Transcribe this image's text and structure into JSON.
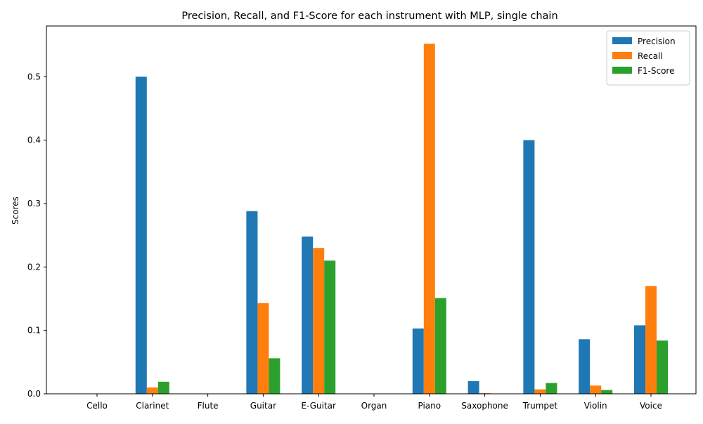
{
  "chart_data": {
    "type": "bar",
    "title": "Precision, Recall, and F1-Score for each instrument with MLP, single chain",
    "xlabel": "",
    "ylabel": "Scores",
    "ylim": [
      0,
      0.58
    ],
    "yticks": [
      "0.0",
      "0.1",
      "0.2",
      "0.3",
      "0.4",
      "0.5"
    ],
    "categories": [
      "Cello",
      "Clarinet",
      "Flute",
      "Guitar",
      "E-Guitar",
      "Organ",
      "Piano",
      "Saxophone",
      "Trumpet",
      "Violin",
      "Voice"
    ],
    "series": [
      {
        "name": "Precision",
        "color": "#1f77b4",
        "values": [
          0,
          0.5,
          0,
          0.288,
          0.248,
          0,
          0.103,
          0.02,
          0.4,
          0.086,
          0.108
        ]
      },
      {
        "name": "Recall",
        "color": "#ff7f0e",
        "values": [
          0,
          0.01,
          0,
          0.143,
          0.23,
          0,
          0.552,
          0.001,
          0.007,
          0.013,
          0.17
        ]
      },
      {
        "name": "F1-Score",
        "color": "#2ca02c",
        "values": [
          0,
          0.019,
          0,
          0.056,
          0.21,
          0,
          0.151,
          0.0,
          0.017,
          0.006,
          0.084
        ]
      }
    ],
    "grid": false,
    "legend_position": "top-right"
  }
}
